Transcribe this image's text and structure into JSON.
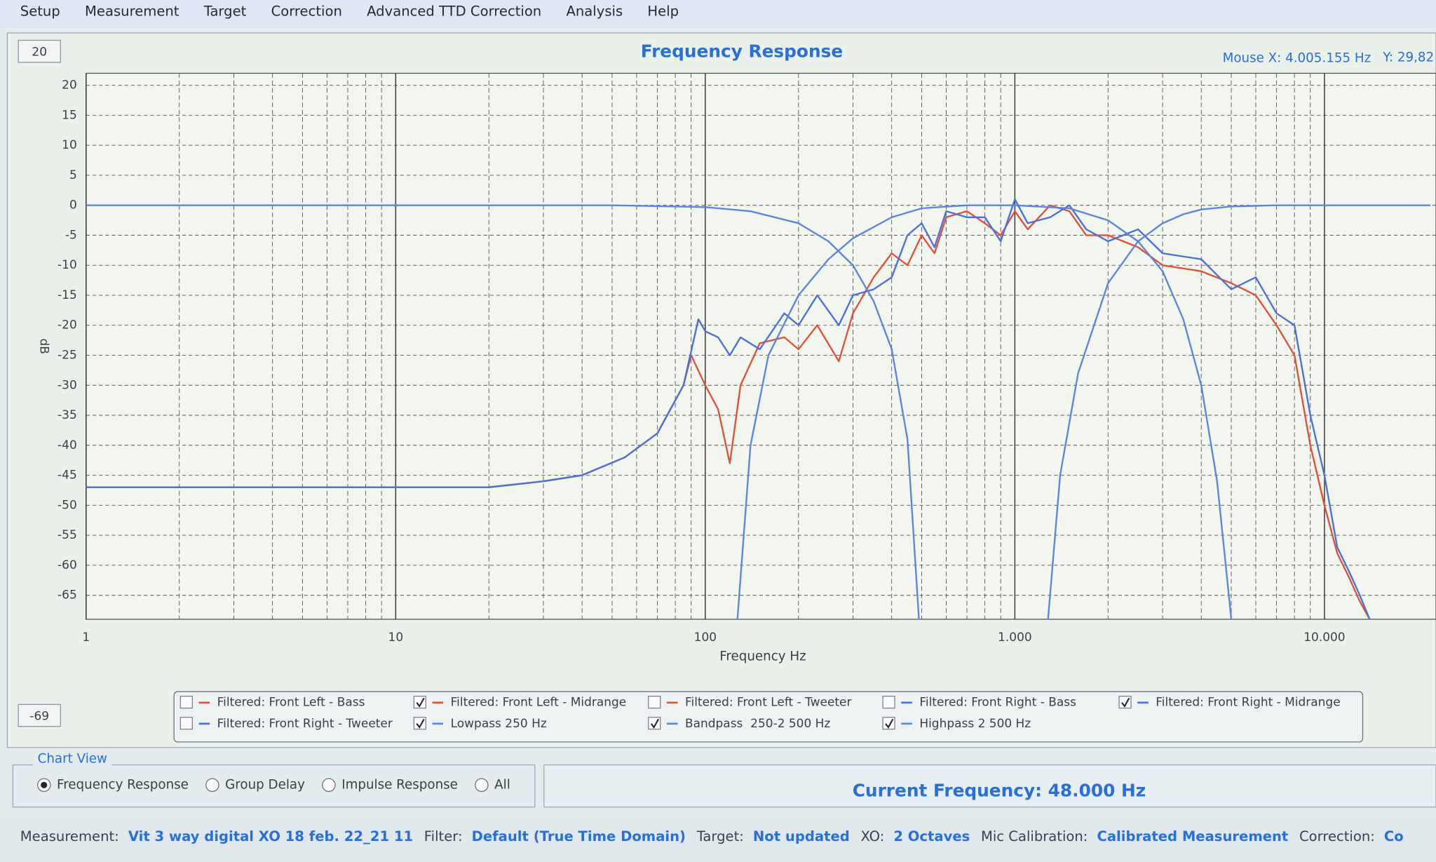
{
  "menu": [
    "Setup",
    "Measurement",
    "Target",
    "Correction",
    "Advanced TTD Correction",
    "Analysis",
    "Help"
  ],
  "controls": {
    "y_max_box": "20",
    "y_min_box": "-69"
  },
  "mouse_readout": {
    "x": "Mouse X: 4.005.155 Hz",
    "y": "Y: 29,82"
  },
  "chart_data": {
    "type": "line",
    "title": "Frequency Response",
    "x_label": "Frequency Hz",
    "y_label": "dB",
    "x_scale": "log",
    "xlim": [
      1,
      22000
    ],
    "ylim": [
      -69,
      22
    ],
    "grid": true,
    "xticks": [
      1,
      10,
      100,
      {
        "value": 1000,
        "label": "1.000"
      },
      {
        "value": 10000,
        "label": "10.000"
      }
    ],
    "xminorticks": [
      2,
      3,
      4,
      5,
      6,
      7,
      8,
      9,
      20,
      30,
      40,
      50,
      60,
      70,
      80,
      90,
      200,
      300,
      400,
      500,
      600,
      700,
      800,
      900,
      2000,
      3000,
      4000,
      5000,
      6000,
      7000,
      8000,
      9000
    ],
    "yticks": [
      20,
      15,
      10,
      5,
      0,
      -5,
      -10,
      -15,
      -20,
      -25,
      -30,
      -35,
      -40,
      -45,
      -50,
      -55,
      -60,
      -65
    ],
    "series": [
      {
        "name": "Filtered: Front Left - Bass",
        "color": "#e0503a",
        "visible": false
      },
      {
        "name": "Filtered: Front Left - Midrange",
        "color": "#e0503a",
        "visible": true,
        "x": [
          1,
          10,
          20,
          30,
          40,
          55,
          70,
          85,
          90,
          100,
          110,
          120,
          130,
          150,
          180,
          200,
          230,
          270,
          300,
          350,
          400,
          450,
          500,
          550,
          600,
          700,
          800,
          900,
          1000,
          1100,
          1300,
          1500,
          1700,
          2000,
          2500,
          3000,
          4000,
          5000,
          6000,
          7000,
          8000,
          9000,
          10000,
          11000,
          12000,
          13000,
          14000
        ],
        "values": [
          -47,
          -47,
          -47,
          -46,
          -45,
          -42,
          -38,
          -30,
          -25,
          -30,
          -34,
          -43,
          -30,
          -23,
          -22,
          -24,
          -20,
          -26,
          -18,
          -12,
          -8,
          -10,
          -5,
          -8,
          -2,
          -1,
          -3,
          -5,
          -1,
          -4,
          0,
          -1,
          -5,
          -5,
          -7,
          -10,
          -11,
          -13,
          -15,
          -20,
          -25,
          -40,
          -50,
          -58,
          -62,
          -66,
          -69
        ]
      },
      {
        "name": "Filtered: Front Left - Tweeter",
        "color": "#e0503a",
        "visible": false
      },
      {
        "name": "Filtered: Front Right - Bass",
        "color": "#4a6fd8",
        "visible": false
      },
      {
        "name": "Filtered: Front Right - Midrange",
        "color": "#4a6fd8",
        "visible": true,
        "x": [
          1,
          10,
          20,
          30,
          40,
          55,
          70,
          85,
          95,
          100,
          110,
          120,
          130,
          150,
          180,
          200,
          230,
          270,
          300,
          350,
          400,
          450,
          500,
          550,
          600,
          700,
          800,
          900,
          1000,
          1100,
          1300,
          1500,
          1700,
          2000,
          2500,
          3000,
          4000,
          5000,
          6000,
          7000,
          8000,
          9000,
          10000,
          11000,
          12000,
          13000,
          14000
        ],
        "values": [
          -47,
          -47,
          -47,
          -46,
          -45,
          -42,
          -38,
          -30,
          -19,
          -21,
          -22,
          -25,
          -22,
          -24,
          -18,
          -20,
          -15,
          -20,
          -15,
          -14,
          -12,
          -5,
          -3,
          -7,
          -1,
          -2,
          -2,
          -6,
          1,
          -3,
          -2,
          0,
          -4,
          -6,
          -4,
          -8,
          -9,
          -14,
          -12,
          -18,
          -20,
          -35,
          -45,
          -57,
          -61,
          -65,
          -69
        ]
      },
      {
        "name": "Filtered: Front Right - Tweeter",
        "color": "#4a6fd8",
        "visible": false
      },
      {
        "name": "Lowpass 250 Hz",
        "color": "#5a84e0",
        "visible": true,
        "x": [
          1,
          50,
          100,
          140,
          200,
          250,
          300,
          350,
          400,
          450,
          490
        ],
        "values": [
          0,
          0,
          -0.3,
          -1,
          -3,
          -6,
          -10,
          -16,
          -24,
          -39,
          -69
        ]
      },
      {
        "name": "Bandpass  250-2 500 Hz",
        "color": "#5a84e0",
        "visible": true,
        "x": [
          127,
          140,
          160,
          200,
          250,
          300,
          400,
          500,
          700,
          1000,
          1500,
          2000,
          2500,
          3000,
          3500,
          4000,
          4500,
          5000
        ],
        "values": [
          -69,
          -40,
          -25,
          -15,
          -9,
          -5.5,
          -2,
          -0.5,
          0,
          0,
          -0.5,
          -2.5,
          -6,
          -11,
          -19,
          -30,
          -46,
          -69
        ]
      },
      {
        "name": "Highpass 2 500 Hz",
        "color": "#5a84e0",
        "visible": true,
        "x": [
          1280,
          1400,
          1600,
          2000,
          2500,
          3000,
          3500,
          4000,
          5000,
          7000,
          22000
        ],
        "values": [
          -69,
          -45,
          -28,
          -13,
          -6,
          -3,
          -1.5,
          -0.7,
          -0.2,
          0,
          0
        ]
      }
    ]
  },
  "chart_view": {
    "title": "Chart View",
    "options": [
      {
        "label": "Frequency Response",
        "selected": true
      },
      {
        "label": "Group Delay",
        "selected": false
      },
      {
        "label": "Impulse Response",
        "selected": false
      },
      {
        "label": "All",
        "selected": false
      }
    ]
  },
  "current_frequency": "Current Frequency: 48.000 Hz",
  "status_bar": [
    {
      "label": "Measurement:",
      "value": "Vit 3 way digital XO 18 feb. 22_21 11"
    },
    {
      "label": "Filter:",
      "value": "Default (True Time Domain)"
    },
    {
      "label": "Target:",
      "value": "Not updated"
    },
    {
      "label": "XO:",
      "value": "2 Octaves"
    },
    {
      "label": "Mic Calibration:",
      "value": "Calibrated Measurement"
    },
    {
      "label": "Correction:",
      "value": "Co"
    }
  ]
}
